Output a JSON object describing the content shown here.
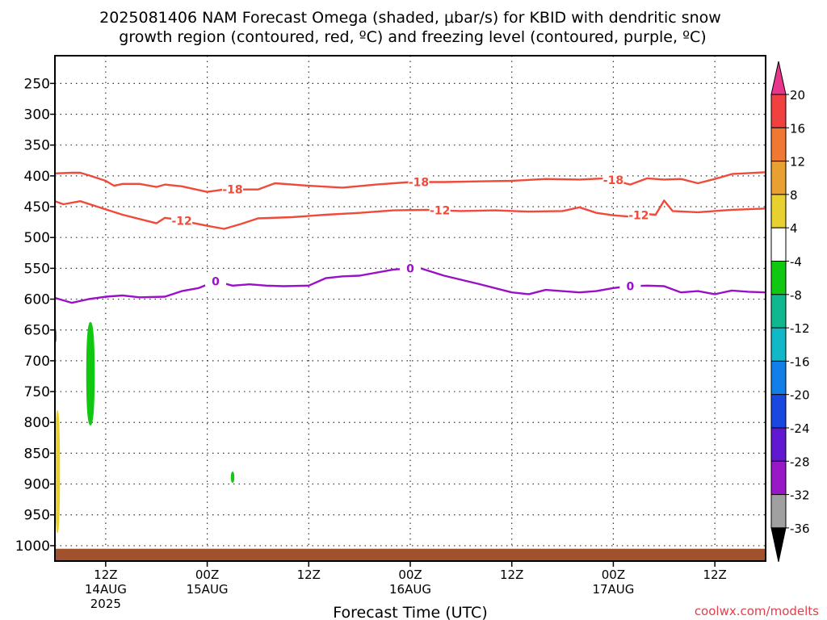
{
  "title_line1": "2025081406 NAM Forecast Omega (shaded, μbar/s) for KBID with dendritic snow",
  "title_line2": "growth region (contoured, red, ºC) and freezing level (contoured, purple, ºC)",
  "watermark": "coolwx.com/modelts",
  "chart_data": {
    "type": "area",
    "xlabel": "Forecast Time (UTC)",
    "ylabel": "",
    "y_reversed": true,
    "ylim": [
      1025,
      205
    ],
    "x_range_hours": [
      0,
      84
    ],
    "grid": true,
    "y_ticks": [
      250,
      300,
      350,
      400,
      450,
      500,
      550,
      600,
      650,
      700,
      750,
      800,
      850,
      900,
      950,
      1000
    ],
    "x_ticks": [
      {
        "hour": 6,
        "labels": [
          "12Z",
          "14AUG",
          "2025"
        ]
      },
      {
        "hour": 18,
        "labels": [
          "00Z",
          "15AUG"
        ]
      },
      {
        "hour": 30,
        "labels": [
          "12Z"
        ]
      },
      {
        "hour": 42,
        "labels": [
          "00Z",
          "16AUG"
        ]
      },
      {
        "hour": 54,
        "labels": [
          "12Z"
        ]
      },
      {
        "hour": 66,
        "labels": [
          "00Z",
          "17AUG"
        ]
      },
      {
        "hour": 78,
        "labels": [
          "12Z"
        ]
      }
    ],
    "colorbar": {
      "labels": [
        "20",
        "16",
        "12",
        "8",
        "4",
        "-4",
        "-8",
        "-12",
        "-16",
        "-20",
        "-24",
        "-28",
        "-32",
        "-36"
      ],
      "colors": [
        "#e8368c",
        "#f04040",
        "#f07830",
        "#e8a030",
        "#e8d030",
        "#ffffff",
        "#10c810",
        "#10b890",
        "#10b8c8",
        "#1080e8",
        "#1848e0",
        "#6018d0",
        "#9818c8",
        "#a0a0a0",
        "#000000"
      ]
    },
    "series": [
      {
        "name": "-18",
        "color": "#f04a3a",
        "label_hours": [
          21,
          43,
          66
        ],
        "points": [
          [
            0,
            396
          ],
          [
            2,
            395
          ],
          [
            3,
            395
          ],
          [
            4,
            399
          ],
          [
            6,
            408
          ],
          [
            7,
            416
          ],
          [
            8,
            413
          ],
          [
            10,
            413
          ],
          [
            12,
            418
          ],
          [
            13,
            414
          ],
          [
            15,
            417
          ],
          [
            18,
            426
          ],
          [
            20,
            422
          ],
          [
            24,
            422
          ],
          [
            26,
            412
          ],
          [
            30,
            416
          ],
          [
            34,
            419
          ],
          [
            38,
            414
          ],
          [
            42,
            410
          ],
          [
            46,
            410
          ],
          [
            50,
            409
          ],
          [
            54,
            408
          ],
          [
            58,
            405
          ],
          [
            62,
            406
          ],
          [
            65,
            404
          ],
          [
            66,
            407
          ],
          [
            68,
            414
          ],
          [
            70,
            404
          ],
          [
            72,
            406
          ],
          [
            74,
            405
          ],
          [
            76,
            412
          ],
          [
            78,
            405
          ],
          [
            80,
            397
          ],
          [
            84,
            394
          ]
        ]
      },
      {
        "name": "-12",
        "color": "#f04a3a",
        "label_hours": [
          15,
          45.5,
          69
        ],
        "points": [
          [
            0,
            441
          ],
          [
            1,
            446
          ],
          [
            3,
            441
          ],
          [
            5,
            450
          ],
          [
            8,
            463
          ],
          [
            12,
            477
          ],
          [
            13,
            468
          ],
          [
            14,
            470
          ],
          [
            18,
            481
          ],
          [
            20,
            486
          ],
          [
            22,
            478
          ],
          [
            24,
            469
          ],
          [
            28,
            467
          ],
          [
            32,
            463
          ],
          [
            36,
            460
          ],
          [
            40,
            456
          ],
          [
            44,
            455
          ],
          [
            48,
            457
          ],
          [
            52,
            456
          ],
          [
            56,
            458
          ],
          [
            60,
            457
          ],
          [
            62,
            451
          ],
          [
            64,
            460
          ],
          [
            66,
            464
          ],
          [
            68,
            466
          ],
          [
            70,
            462
          ],
          [
            71,
            463
          ],
          [
            72,
            440
          ],
          [
            73,
            457
          ],
          [
            76,
            459
          ],
          [
            80,
            455
          ],
          [
            84,
            453
          ]
        ]
      },
      {
        "name": "0",
        "color": "#9a10c8",
        "label_hours": [
          19,
          42,
          68
        ],
        "points": [
          [
            0,
            598
          ],
          [
            2,
            606
          ],
          [
            4,
            600
          ],
          [
            6,
            596
          ],
          [
            8,
            594
          ],
          [
            10,
            597
          ],
          [
            13,
            596
          ],
          [
            15,
            587
          ],
          [
            17,
            582
          ],
          [
            19,
            571
          ],
          [
            21,
            578
          ],
          [
            23,
            576
          ],
          [
            25,
            578
          ],
          [
            27,
            579
          ],
          [
            30,
            578
          ],
          [
            32,
            566
          ],
          [
            34,
            563
          ],
          [
            36,
            562
          ],
          [
            40,
            552
          ],
          [
            43,
            549
          ],
          [
            46,
            562
          ],
          [
            50,
            575
          ],
          [
            54,
            589
          ],
          [
            56,
            592
          ],
          [
            58,
            585
          ],
          [
            62,
            589
          ],
          [
            64,
            587
          ],
          [
            66,
            582
          ],
          [
            68,
            579
          ],
          [
            70,
            578
          ],
          [
            72,
            579
          ],
          [
            74,
            589
          ],
          [
            76,
            587
          ],
          [
            78,
            592
          ],
          [
            80,
            586
          ],
          [
            82,
            588
          ],
          [
            84,
            589
          ]
        ]
      }
    ],
    "shading": [
      {
        "value": "-4 to -8",
        "color": "#10c810",
        "hours": [
          3.7,
          4.7
        ],
        "p_top": 637,
        "p_bottom": 805
      },
      {
        "value": "-4 to -8",
        "color": "#10c810",
        "hours": [
          20.8,
          21.2
        ],
        "p_top": 880,
        "p_bottom": 898
      },
      {
        "value": "-4 to -8",
        "color": "#10c810",
        "hours": [
          0,
          0.2
        ],
        "p_top": 650,
        "p_bottom": 670
      },
      {
        "value": "4 to 8",
        "color": "#e8d030",
        "hours": [
          0,
          0.6
        ],
        "p_top": 780,
        "p_bottom": 980
      }
    ],
    "terrain": {
      "color": "#a0522d",
      "top_p": 1005
    }
  }
}
